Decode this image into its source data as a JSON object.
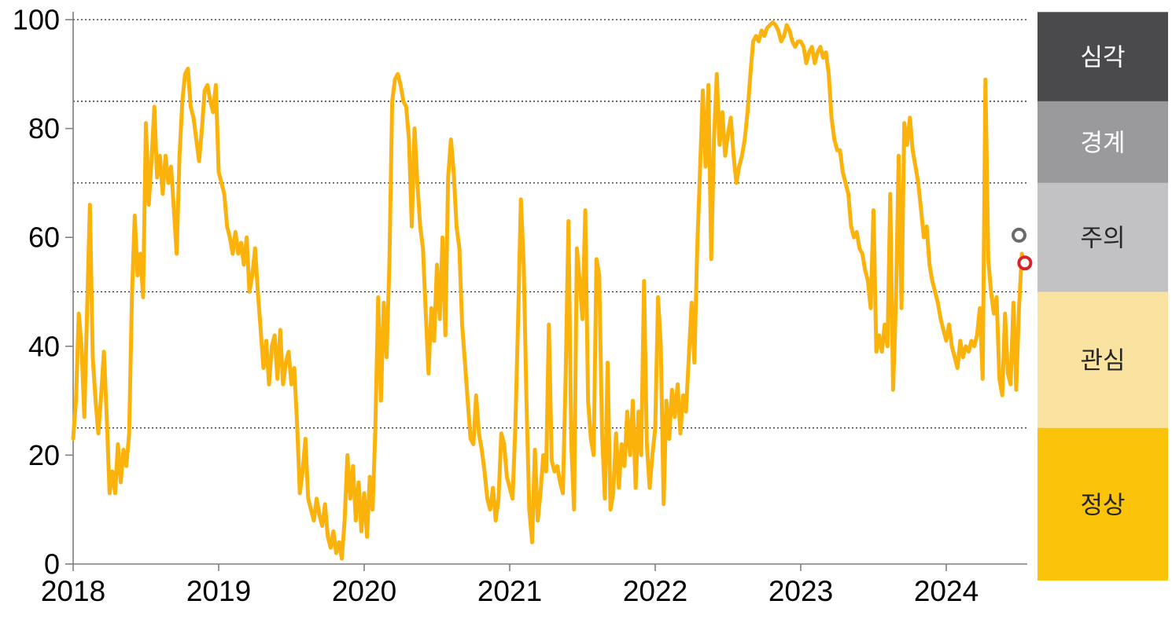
{
  "chart_data": {
    "type": "line",
    "title": "",
    "series": [
      {
        "name": "index-line",
        "color": "#FBB30B",
        "start_year": 2018,
        "points_per_year": 52,
        "values": [
          23,
          30,
          46,
          40,
          27,
          47,
          66,
          38,
          30,
          24,
          31,
          39,
          27,
          13,
          17,
          13,
          22,
          15,
          21,
          18,
          24,
          49,
          64,
          53,
          57,
          49,
          81,
          66,
          74,
          84,
          71,
          75,
          68,
          75,
          70,
          73,
          65,
          57,
          75,
          85,
          90,
          91,
          84,
          82,
          78,
          74,
          80,
          87,
          88,
          85,
          83,
          88,
          72,
          70,
          68,
          62,
          60,
          57,
          61,
          57,
          59,
          55,
          60,
          50,
          53,
          58,
          50,
          43,
          36,
          41,
          33,
          40,
          42,
          34,
          43,
          33,
          37,
          39,
          33,
          36,
          26,
          13,
          17,
          23,
          12,
          10,
          8,
          12,
          9,
          7,
          11,
          5,
          3,
          6,
          2,
          4,
          1,
          8,
          20,
          12,
          18,
          8,
          15,
          6,
          13,
          5,
          16,
          10,
          25,
          49,
          30,
          48,
          38,
          55,
          85,
          89,
          90,
          88,
          85,
          84,
          78,
          62,
          80,
          70,
          62,
          58,
          46,
          35,
          47,
          41,
          55,
          45,
          60,
          42,
          71,
          78,
          72,
          62,
          58,
          44,
          37,
          30,
          23,
          22,
          31,
          24,
          21,
          17,
          12,
          10,
          14,
          8,
          12,
          24,
          22,
          16,
          14,
          12,
          25,
          45,
          67,
          55,
          30,
          10,
          4,
          21,
          8,
          13,
          20,
          17,
          44,
          19,
          17,
          18,
          15,
          13,
          35,
          63,
          22,
          10,
          58,
          52,
          45,
          65,
          30,
          23,
          20,
          56,
          53,
          24,
          12,
          37,
          10,
          13,
          24,
          14,
          22,
          18,
          28,
          20,
          30,
          14,
          28,
          20,
          52,
          22,
          14,
          20,
          25,
          49,
          40,
          11,
          30,
          23,
          32,
          27,
          33,
          24,
          31,
          28,
          38,
          48,
          37,
          58,
          72,
          87,
          73,
          88,
          56,
          78,
          90,
          77,
          83,
          75,
          79,
          82,
          75,
          70,
          73,
          75,
          78,
          83,
          90,
          96,
          97,
          96,
          98,
          97,
          98.5,
          99,
          99.5,
          99,
          98,
          96,
          97,
          99,
          98,
          96,
          95,
          96,
          96,
          95,
          92,
          94,
          95,
          92,
          94,
          95,
          93,
          94,
          90,
          82,
          78,
          76,
          76,
          72,
          70,
          68,
          62,
          60,
          61,
          58,
          57,
          54,
          52,
          47,
          65,
          39,
          42,
          39,
          44,
          40,
          68,
          32,
          48,
          75,
          47,
          81,
          77,
          82,
          76,
          73,
          70,
          65,
          60,
          62,
          55,
          52,
          50,
          48,
          45,
          43,
          41,
          44,
          40,
          38,
          36,
          41,
          38,
          40,
          39,
          41,
          40,
          42,
          47,
          34,
          89,
          56,
          50,
          46,
          49,
          34,
          31,
          46,
          35,
          33,
          48,
          32,
          47,
          57,
          55.3
        ]
      }
    ],
    "x_ticks": [
      2018,
      2019,
      2020,
      2021,
      2022,
      2023,
      2024
    ],
    "x_tick_labels": [
      "2018",
      "2019",
      "2020",
      "2021",
      "2022",
      "2023",
      "2024"
    ],
    "y_ticks": [
      0,
      20,
      40,
      60,
      80,
      100
    ],
    "y_tick_labels": [
      "0",
      "20",
      "40",
      "60",
      "80",
      "100"
    ],
    "ylim": [
      0,
      100
    ],
    "xlim": [
      2018,
      2024.62
    ],
    "grid_on": true,
    "threshold_gridlines": [
      25,
      50,
      70,
      85,
      100
    ],
    "markers": [
      {
        "name": "previous-reading-marker",
        "x": 2024.5,
        "value": 60.4,
        "color": "#6A6A6A"
      },
      {
        "name": "latest-reading-marker",
        "x": 2024.54,
        "value": 55.3,
        "color": "#D7242B"
      }
    ],
    "legend_position": "right-band"
  },
  "legend": {
    "bands": [
      {
        "key": "severe",
        "label": "심각",
        "from": 85,
        "to": 101.4,
        "color": "#4A4A4C",
        "text_color": "#FFFFFF"
      },
      {
        "key": "alert",
        "label": "경계",
        "from": 70,
        "to": 85,
        "color": "#9A9A9C",
        "text_color": "#FFFFFF"
      },
      {
        "key": "caution",
        "label": "주의",
        "from": 50,
        "to": 70,
        "color": "#C2C2C4",
        "text_color": "#262626"
      },
      {
        "key": "interest",
        "label": "관심",
        "from": 25,
        "to": 50,
        "color": "#FAE2A0",
        "text_color": "#262626"
      },
      {
        "key": "normal",
        "label": "정상",
        "from": -3.1,
        "to": 25,
        "color": "#FCC408",
        "text_color": "#262626"
      }
    ]
  },
  "colors": {
    "background": "#FFFFFF",
    "axis": "#7F7F7F",
    "gridline": "#262626",
    "tick_label": "#000000",
    "line": "#FBB30B",
    "marker_previous": "#6A6A6A",
    "marker_latest": "#D7242B"
  }
}
